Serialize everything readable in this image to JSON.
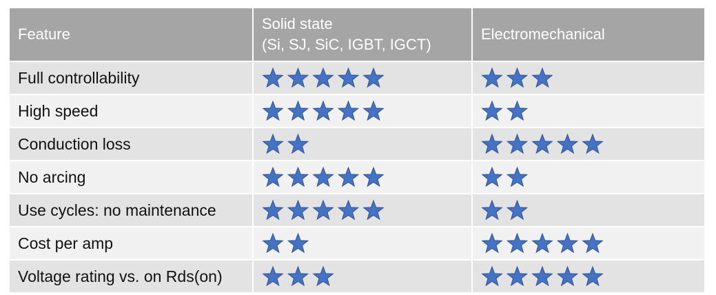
{
  "table": {
    "header": {
      "feature": "Feature",
      "solid_state": {
        "title": "Solid state",
        "subtitle": "(Si, SJ, SiC, IGBT, IGCT)"
      },
      "electromechanical": "Electromechanical"
    },
    "star_color": "#4472c4",
    "rows": [
      {
        "feature": "Full controllability",
        "solid_state": 5,
        "electromechanical": 3
      },
      {
        "feature": "High speed",
        "solid_state": 5,
        "electromechanical": 2
      },
      {
        "feature": "Conduction loss",
        "solid_state": 2,
        "electromechanical": 5
      },
      {
        "feature": "No arcing",
        "solid_state": 5,
        "electromechanical": 2
      },
      {
        "feature": "Use cycles: no maintenance",
        "solid_state": 5,
        "electromechanical": 2
      },
      {
        "feature": "Cost per amp",
        "solid_state": 2,
        "electromechanical": 5
      },
      {
        "feature": "Voltage rating vs. on Rds(on)",
        "solid_state": 3,
        "electromechanical": 5
      }
    ]
  }
}
